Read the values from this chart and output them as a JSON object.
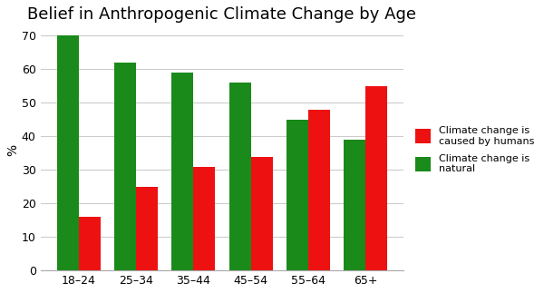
{
  "title": "Belief in Anthropogenic Climate Change by Age",
  "categories": [
    "18–24",
    "25–34",
    "35–44",
    "45–54",
    "55–64",
    "65+"
  ],
  "human_caused": [
    16,
    25,
    31,
    34,
    48,
    55
  ],
  "natural": [
    70,
    62,
    59,
    56,
    45,
    39
  ],
  "color_human": "#ee1111",
  "color_natural": "#1a8a1a",
  "ylabel": "%",
  "ylim": [
    0,
    72
  ],
  "yticks": [
    0,
    10,
    20,
    30,
    40,
    50,
    60,
    70
  ],
  "legend_human": "Climate change is\ncaused by humans",
  "legend_natural": "Climate change is\nnatural",
  "title_fontsize": 13,
  "label_fontsize": 10,
  "tick_fontsize": 9,
  "bg_color": "#ffffff",
  "grid_color": "#cccccc",
  "bar_width": 0.38
}
